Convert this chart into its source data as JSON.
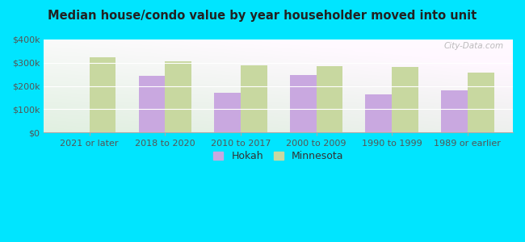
{
  "title": "Median house/condo value by year householder moved into unit",
  "categories": [
    "2021 or later",
    "2018 to 2020",
    "2010 to 2017",
    "2000 to 2009",
    "1990 to 1999",
    "1989 or earlier"
  ],
  "hokah_values": [
    null,
    245000,
    170000,
    248000,
    163000,
    180000
  ],
  "minnesota_values": [
    325000,
    305000,
    290000,
    287000,
    283000,
    257000
  ],
  "hokah_color": "#c9a8e0",
  "minnesota_color": "#c8d8a0",
  "background_color": "#00e5ff",
  "plot_bg_color": "#e8f5e4",
  "ylim": [
    0,
    400000
  ],
  "yticks": [
    0,
    100000,
    200000,
    300000,
    400000
  ],
  "ytick_labels": [
    "$0",
    "$100k",
    "$200k",
    "$300k",
    "$400k"
  ],
  "bar_width": 0.35,
  "legend_labels": [
    "Hokah",
    "Minnesota"
  ],
  "watermark": "City-Data.com"
}
